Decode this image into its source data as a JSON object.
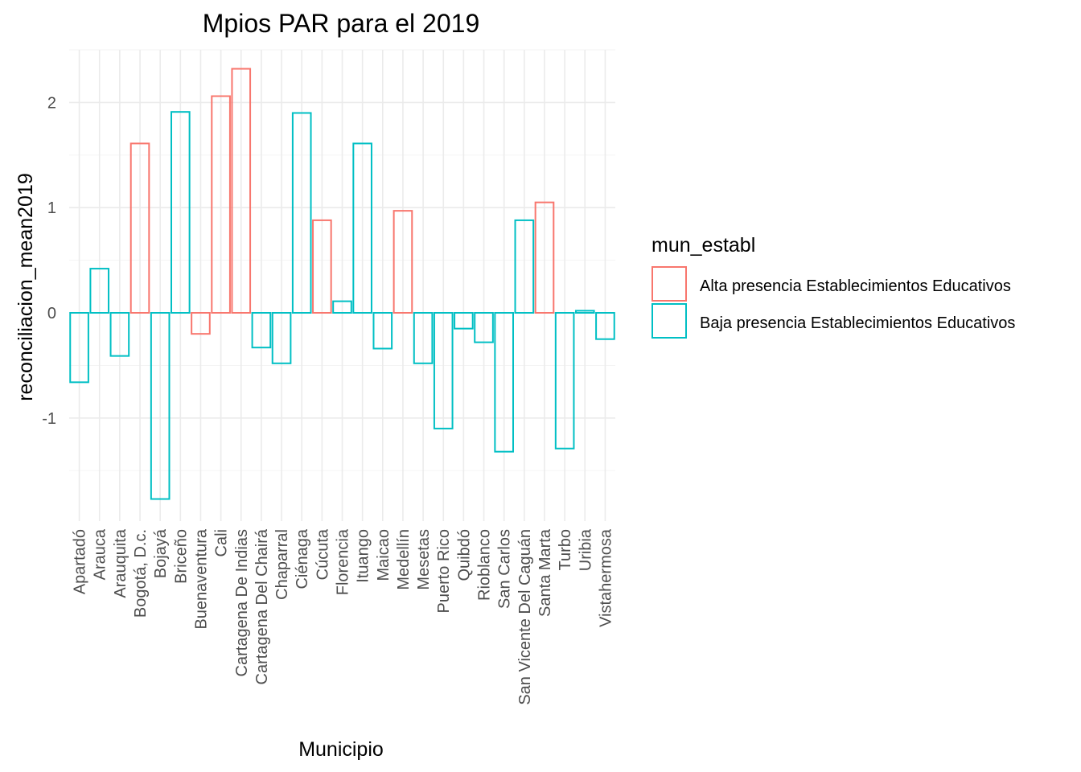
{
  "chart_data": {
    "type": "bar",
    "title": "Mpios PAR para el 2019",
    "xlabel": "Municipio",
    "ylabel": "reconciliacion_mean2019",
    "ylim": [
      -1.98,
      2.5
    ],
    "yticks": [
      -1,
      0,
      1,
      2
    ],
    "yticklabels": [
      "-1",
      "0",
      "1",
      "2"
    ],
    "grid": true,
    "legend": {
      "title": "mun_establ",
      "placement": "right",
      "entries": [
        {
          "label": "Alta presencia Establecimientos Educativos",
          "color": "#F8766D"
        },
        {
          "label": "Baja presencia Establecimientos Educativos",
          "color": "#00BFC4"
        }
      ]
    },
    "categories": [
      "Apartadó",
      "Arauca",
      "Arauquita",
      "Bogotá, D.c.",
      "Bojayá",
      "Briceño",
      "Buenaventura",
      "Cali",
      "Cartagena De Indias",
      "Cartagena Del Chairá",
      "Chaparral",
      "Ciénaga",
      "Cúcuta",
      "Florencia",
      "Ituango",
      "Maicao",
      "Medellín",
      "Mesetas",
      "Puerto Rico",
      "Quibdó",
      "Rioblanco",
      "San Carlos",
      "San Vicente Del Caguán",
      "Santa Marta",
      "Turbo",
      "Uribia",
      "Vistahermosa"
    ],
    "values": [
      -0.66,
      0.42,
      -0.41,
      1.61,
      -1.77,
      1.91,
      -0.2,
      2.06,
      2.32,
      -0.33,
      -0.48,
      1.9,
      0.88,
      0.11,
      1.61,
      -0.34,
      0.97,
      -0.48,
      -1.1,
      -0.15,
      -0.28,
      -1.32,
      0.88,
      1.05,
      -1.29,
      0.02,
      -0.25
    ],
    "groups": [
      "Baja presencia Establecimientos Educativos",
      "Baja presencia Establecimientos Educativos",
      "Baja presencia Establecimientos Educativos",
      "Alta presencia Establecimientos Educativos",
      "Baja presencia Establecimientos Educativos",
      "Baja presencia Establecimientos Educativos",
      "Alta presencia Establecimientos Educativos",
      "Alta presencia Establecimientos Educativos",
      "Alta presencia Establecimientos Educativos",
      "Baja presencia Establecimientos Educativos",
      "Baja presencia Establecimientos Educativos",
      "Baja presencia Establecimientos Educativos",
      "Alta presencia Establecimientos Educativos",
      "Baja presencia Establecimientos Educativos",
      "Baja presencia Establecimientos Educativos",
      "Baja presencia Establecimientos Educativos",
      "Alta presencia Establecimientos Educativos",
      "Baja presencia Establecimientos Educativos",
      "Baja presencia Establecimientos Educativos",
      "Baja presencia Establecimientos Educativos",
      "Baja presencia Establecimientos Educativos",
      "Baja presencia Establecimientos Educativos",
      "Baja presencia Establecimientos Educativos",
      "Alta presencia Establecimientos Educativos",
      "Baja presencia Establecimientos Educativos",
      "Baja presencia Establecimientos Educativos",
      "Baja presencia Establecimientos Educativos"
    ]
  }
}
